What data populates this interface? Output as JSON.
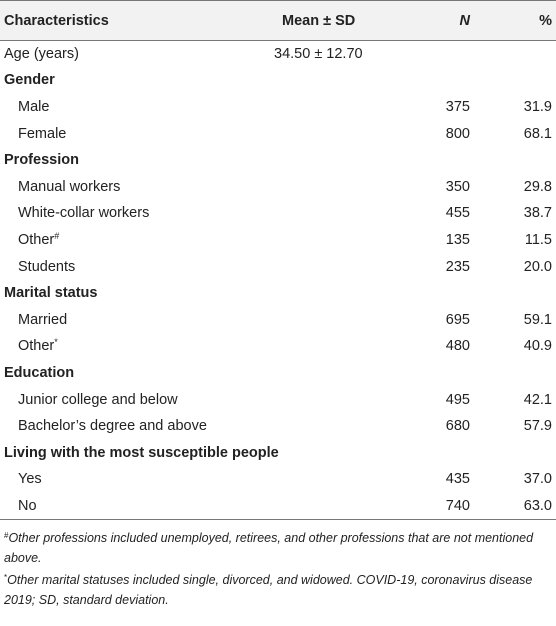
{
  "table": {
    "headers": {
      "characteristics": "Characteristics",
      "mean_sd": "Mean ± SD",
      "n": "N",
      "percent": "%"
    },
    "age": {
      "label": "Age (years)",
      "mean_sd": "34.50 ± 12.70"
    },
    "gender": {
      "label": "Gender",
      "rows": [
        {
          "label": "Male",
          "n": "375",
          "pct": "31.9"
        },
        {
          "label": "Female",
          "n": "800",
          "pct": "68.1"
        }
      ]
    },
    "profession": {
      "label": "Profession",
      "rows": [
        {
          "label": "Manual workers",
          "n": "350",
          "pct": "29.8"
        },
        {
          "label": "White-collar workers",
          "n": "455",
          "pct": "38.7"
        },
        {
          "label": "Other",
          "mark": "#",
          "n": "135",
          "pct": "11.5"
        },
        {
          "label": "Students",
          "n": "235",
          "pct": "20.0"
        }
      ]
    },
    "marital": {
      "label": "Marital status",
      "rows": [
        {
          "label": "Married",
          "n": "695",
          "pct": "59.1"
        },
        {
          "label": "Other",
          "mark": "*",
          "n": "480",
          "pct": "40.9"
        }
      ]
    },
    "education": {
      "label": "Education",
      "rows": [
        {
          "label": "Junior college and below",
          "n": "495",
          "pct": "42.1"
        },
        {
          "label": "Bachelor’s degree and above",
          "n": "680",
          "pct": "57.9"
        }
      ]
    },
    "living": {
      "label": "Living with the most susceptible people",
      "rows": [
        {
          "label": "Yes",
          "n": "435",
          "pct": "37.0"
        },
        {
          "label": "No",
          "n": "740",
          "pct": "63.0"
        }
      ]
    }
  },
  "footnotes": {
    "note1": {
      "mark": "#",
      "text": "Other professions included unemployed, retirees, and other professions that are not mentioned above."
    },
    "note2": {
      "mark": "*",
      "text": "Other marital statuses included single, divorced, and widowed. COVID-19, coronavirus disease 2019; SD, standard deviation."
    }
  }
}
